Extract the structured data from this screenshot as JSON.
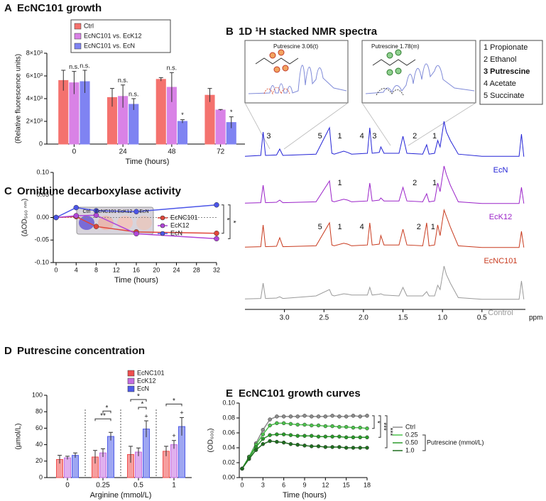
{
  "chart_data": [
    {
      "label": "A",
      "type": "bar",
      "title": "EcNC101 growth",
      "categories": [
        "0",
        "24",
        "48",
        "72"
      ],
      "xlabel": "Time (hours)",
      "ylabel": "(Relative fluorescence units)",
      "ylim": [
        0,
        8000
      ],
      "yticks": [
        0,
        {
          "value": 2000,
          "label": "2×10³"
        },
        {
          "value": 4000,
          "label": "4×10³"
        },
        {
          "value": 6000,
          "label": "6×10³"
        },
        {
          "value": 8000,
          "label": "8×10³"
        }
      ],
      "series": [
        {
          "name": "Ctrl",
          "color": "#f4726e",
          "values": [
            5600,
            4100,
            5700,
            4300
          ],
          "errors": [
            900,
            800,
            150,
            600
          ]
        },
        {
          "name": "EcNC101 vs. EcK12",
          "color": "#d982e6",
          "values": [
            5400,
            4200,
            5000,
            3000
          ],
          "errors": [
            1000,
            1000,
            1300,
            50
          ],
          "marks": [
            "n.s.",
            "n.s.",
            "n.s.",
            null
          ]
        },
        {
          "name": "EcNC101 vs. EcN",
          "color": "#7f83f2",
          "values": [
            5500,
            3500,
            2000,
            1900
          ],
          "errors": [
            1000,
            500,
            150,
            500
          ],
          "marks": [
            "n.s.",
            "n.s.",
            "*",
            "*"
          ]
        }
      ]
    },
    {
      "label": "B",
      "type": "spectra",
      "title": "1D ¹H stacked NMR spectra",
      "xlabel": "ppm",
      "x": [
        3.5,
        3.3,
        3.27,
        3.24,
        3.1,
        3.06,
        3.02,
        2.6,
        2.43,
        2.4,
        2.37,
        2.25,
        2.2,
        2.15,
        1.95,
        1.92,
        1.89,
        1.8,
        1.78,
        1.74,
        1.55,
        1.5,
        1.45,
        1.25,
        1.2,
        1.17,
        1.1,
        1.06,
        1.03,
        0.98,
        0.95,
        0.9,
        0.8,
        0.5,
        0.03,
        0.0,
        -0.03
      ],
      "xlim": [
        3.5,
        -0.05
      ],
      "xticks": [
        {
          "value": 3,
          "label": "3.0"
        },
        2.5,
        {
          "value": 2,
          "label": "2.0"
        },
        1.5,
        {
          "value": 1,
          "label": "1.0"
        },
        0.5
      ],
      "series": [
        {
          "name": "EcN",
          "color": "#2323d6",
          "values": [
            3,
            5,
            60,
            5,
            6,
            20,
            5,
            8,
            70,
            10,
            8,
            15,
            12,
            8,
            10,
            70,
            10,
            12,
            25,
            10,
            10,
            50,
            10,
            8,
            30,
            8,
            10,
            40,
            25,
            85,
            60,
            40,
            8,
            3,
            3,
            55,
            2
          ],
          "peak_labels": [
            {
              "text": "3",
              "ppm": 3.2
            },
            {
              "text": "5",
              "ppm": 2.55
            },
            {
              "text": "1",
              "ppm": 2.3
            },
            {
              "text": "4",
              "ppm": 2.02
            },
            {
              "text": "3",
              "ppm": 1.86
            },
            {
              "text": "2",
              "ppm": 1.35
            },
            {
              "text": "1",
              "ppm": 1.1
            }
          ]
        },
        {
          "name": "EcK12",
          "color": "#9a22c8",
          "values": [
            3,
            4,
            45,
            4,
            5,
            10,
            4,
            6,
            55,
            8,
            6,
            12,
            10,
            6,
            8,
            50,
            8,
            10,
            15,
            8,
            8,
            40,
            8,
            6,
            25,
            6,
            8,
            50,
            30,
            90,
            70,
            45,
            6,
            2,
            2,
            40,
            2
          ],
          "peak_labels": [
            {
              "text": "1",
              "ppm": 2.3
            },
            {
              "text": "2",
              "ppm": 1.35
            },
            {
              "text": "1",
              "ppm": 1.1
            }
          ]
        },
        {
          "name": "EcNC101",
          "color": "#c83a1e",
          "values": [
            3,
            4,
            55,
            4,
            5,
            25,
            4,
            6,
            60,
            8,
            6,
            12,
            10,
            6,
            8,
            60,
            8,
            10,
            30,
            8,
            8,
            45,
            8,
            6,
            60,
            6,
            8,
            55,
            30,
            90,
            75,
            50,
            6,
            2,
            2,
            40,
            2
          ],
          "peak_labels": [
            {
              "text": "5",
              "ppm": 2.55
            },
            {
              "text": "1",
              "ppm": 2.3
            },
            {
              "text": "4",
              "ppm": 2.02
            },
            {
              "text": "2",
              "ppm": 1.3
            },
            {
              "text": "1",
              "ppm": 1.12
            }
          ]
        },
        {
          "name": "Control",
          "color": "#9a9a9a",
          "values": [
            3,
            4,
            40,
            4,
            5,
            8,
            4,
            10,
            25,
            12,
            10,
            15,
            14,
            12,
            12,
            30,
            12,
            14,
            15,
            12,
            10,
            30,
            10,
            10,
            20,
            10,
            10,
            35,
            25,
            80,
            60,
            40,
            6,
            2,
            2,
            45,
            2
          ]
        }
      ],
      "compounds": [
        "1 Propionate",
        "2 Ethanol",
        "3 Putrescine",
        "4 Acetate",
        "5 Succinate"
      ],
      "bold_compound": 2,
      "insets": [
        "Putrescine 3.06(t)",
        "Putrescine 1.78(m)"
      ]
    },
    {
      "label": "C",
      "type": "line",
      "title": "Ornithine decarboxylase activity",
      "xlabel": "Time (hours)",
      "ylabel": "(ΔOD₅₆₀ ₙₘ)",
      "x": [
        0,
        4,
        8,
        16,
        32
      ],
      "xlim": [
        0,
        32
      ],
      "xticks": [
        0,
        4,
        8,
        12,
        16,
        20,
        24,
        28,
        32
      ],
      "ylim": [
        -0.1,
        0.1
      ],
      "yticks": [
        {
          "value": -0.1,
          "label": "-0.10"
        },
        -0.05,
        {
          "value": 0,
          "label": "0.00"
        },
        0.05,
        {
          "value": 0.1,
          "label": "0.10"
        }
      ],
      "zero_line": true,
      "series": [
        {
          "name": "EcNC101",
          "color": "#e0463a",
          "values": [
            0,
            0.002,
            -0.02,
            -0.032,
            -0.035
          ]
        },
        {
          "name": "EcK12",
          "color": "#b146d8",
          "values": [
            0,
            0.004,
            0.005,
            -0.036,
            -0.047
          ]
        },
        {
          "name": "EcN",
          "color": "#4b55e8",
          "values": [
            0,
            0.022,
            0.015,
            0.013,
            0.028
          ]
        }
      ],
      "significance": [
        {
          "text": "*",
          "pair": [
            0,
            2
          ]
        },
        {
          "text": "*",
          "pair": [
            1,
            2
          ]
        }
      ],
      "inset_labels": [
        "Ctrl",
        "EcNC101",
        "EcK12",
        "EcN"
      ]
    },
    {
      "label": "D",
      "type": "bar",
      "title": "Putrescine concentration",
      "categories": [
        "0",
        "0.25",
        "0.5",
        "1"
      ],
      "xlabel": "Arginine (mmol/L)",
      "ylabel": "(µmol/L)",
      "ylim": [
        0,
        100
      ],
      "yticks": [
        0,
        20,
        40,
        60,
        80,
        100
      ],
      "separators": true,
      "fill_opacity": 0.55,
      "series": [
        {
          "name": "EcNC101",
          "color": "#ef4f4f",
          "values": [
            22,
            25,
            28,
            32
          ],
          "errors": [
            5,
            8,
            10,
            6
          ]
        },
        {
          "name": "EcK12",
          "color": "#c46ee0",
          "values": [
            24,
            30,
            31,
            40
          ],
          "errors": [
            2,
            5,
            5,
            5
          ],
          "marks": [
            null,
            null,
            null,
            "+"
          ]
        },
        {
          "name": "EcN",
          "color": "#4f5ce8",
          "values": [
            27,
            50,
            59,
            62
          ],
          "errors": [
            3,
            5,
            10,
            11
          ],
          "marks": [
            null,
            null,
            "+",
            "+"
          ]
        }
      ],
      "significance": [
        {
          "text": "**",
          "category": 1,
          "pair": [
            0,
            2
          ]
        },
        {
          "text": "*",
          "category": 1,
          "pair": [
            1,
            2
          ]
        },
        {
          "text": "*",
          "category": 2,
          "pair": [
            1,
            2
          ]
        },
        {
          "text": "*",
          "category": 2,
          "pair": [
            0,
            2
          ]
        },
        {
          "text": "*",
          "category": 3,
          "pair": [
            0,
            2
          ]
        }
      ]
    },
    {
      "label": "E",
      "type": "line",
      "title": "EcNC101 growth curves",
      "xlabel": "Time (hours)",
      "ylabel": "(OD₆₀₀)",
      "x": [
        0,
        1,
        2,
        3,
        4,
        5,
        6,
        7,
        8,
        9,
        10,
        11,
        12,
        13,
        14,
        15,
        16,
        17,
        18
      ],
      "xlim": [
        0,
        18
      ],
      "xticks": [
        0,
        3,
        6,
        9,
        12,
        15,
        18
      ],
      "ylim": [
        0,
        0.1
      ],
      "yticks": [
        {
          "value": 0,
          "label": "0.00"
        },
        0.02,
        0.04,
        0.06,
        0.08,
        {
          "value": 0.1,
          "label": "0.10"
        }
      ],
      "legend_title": "Putrescine (mmol/L)",
      "series": [
        {
          "name": "Ctrl",
          "color": "#8c8c8c",
          "values": [
            0.012,
            0.028,
            0.046,
            0.064,
            0.078,
            0.082,
            0.082,
            0.082,
            0.082,
            0.083,
            0.082,
            0.082,
            0.082,
            0.083,
            0.082,
            0.082,
            0.083,
            0.082,
            0.083
          ]
        },
        {
          "name": "0.25",
          "color": "#4cc24c",
          "values": [
            0.012,
            0.028,
            0.044,
            0.058,
            0.07,
            0.073,
            0.073,
            0.072,
            0.071,
            0.071,
            0.07,
            0.07,
            0.069,
            0.069,
            0.068,
            0.068,
            0.067,
            0.067,
            0.066
          ]
        },
        {
          "name": "0.50",
          "color": "#2a9a2a",
          "values": [
            0.012,
            0.027,
            0.041,
            0.052,
            0.057,
            0.058,
            0.058,
            0.057,
            0.056,
            0.056,
            0.056,
            0.055,
            0.055,
            0.055,
            0.055,
            0.054,
            0.054,
            0.054,
            0.054
          ]
        },
        {
          "name": "1.0",
          "color": "#1f6e1f",
          "values": [
            0.012,
            0.025,
            0.037,
            0.045,
            0.049,
            0.048,
            0.047,
            0.045,
            0.044,
            0.043,
            0.042,
            0.042,
            0.041,
            0.041,
            0.041,
            0.04,
            0.04,
            0.04,
            0.04
          ]
        }
      ],
      "significance": [
        {
          "text": "*",
          "pair": [
            0,
            1
          ]
        },
        {
          "text": "***",
          "pair": [
            0,
            2
          ]
        },
        {
          "text": "***",
          "pair": [
            0,
            3
          ]
        }
      ]
    }
  ]
}
